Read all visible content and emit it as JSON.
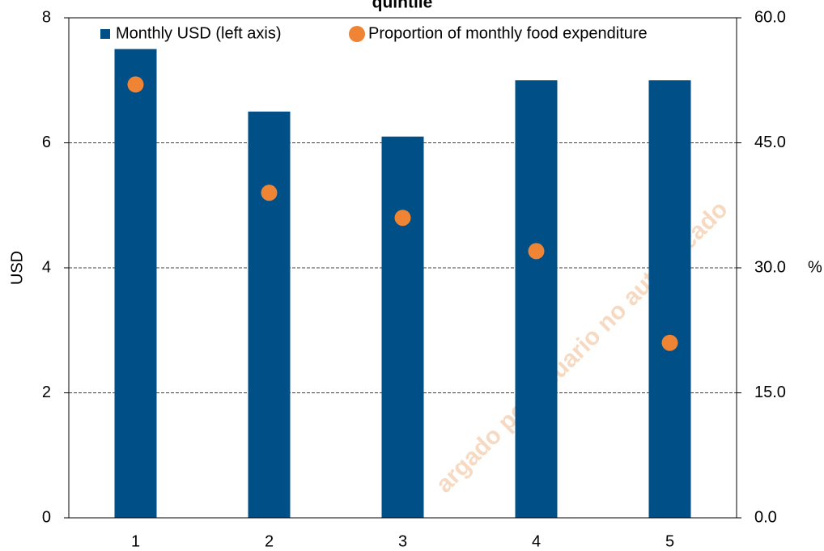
{
  "chart_data": {
    "type": "bar_scatter",
    "title": "quintile",
    "categories": [
      "1",
      "2",
      "3",
      "4",
      "5"
    ],
    "series": [
      {
        "name": "Monthly USD (left axis)",
        "color": "#004f86",
        "type": "bar",
        "values": [
          7.5,
          6.5,
          6.1,
          7.0,
          7.0
        ]
      },
      {
        "name": "Proportion of monthly food expenditure",
        "color": "#ee8434",
        "type": "scatter",
        "axis": "y2",
        "values": [
          52.0,
          39.0,
          36.0,
          32.0,
          21.0
        ]
      }
    ],
    "ylabel": "USD",
    "y2label": "%",
    "ylim": [
      0,
      8
    ],
    "yticks": [
      0,
      2,
      4,
      6,
      8
    ],
    "y2lim": [
      0,
      60
    ],
    "y2ticks": [
      {
        "value": 0,
        "label": "0.0"
      },
      {
        "value": 15,
        "label": "15.0"
      },
      {
        "value": 30,
        "label": "30.0"
      },
      {
        "value": 45,
        "label": "45.0"
      },
      {
        "value": 60,
        "label": "60.0"
      }
    ],
    "grid": true,
    "watermark": "argado por usuario no autenticado"
  }
}
